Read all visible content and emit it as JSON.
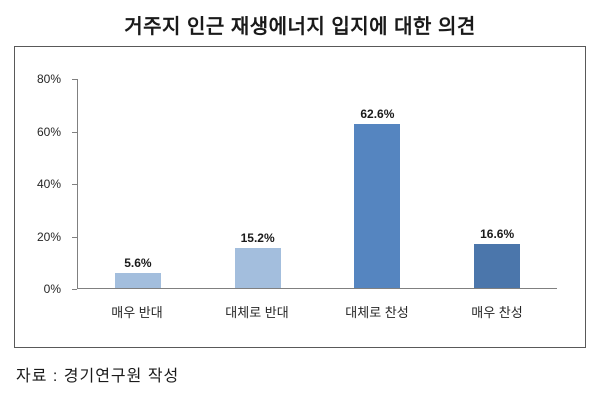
{
  "chart_data": {
    "type": "bar",
    "title": "거주지 인근 재생에너지 입지에 대한 의견",
    "categories": [
      "매우 반대",
      "대체로 반대",
      "대체로 찬성",
      "매우 찬성"
    ],
    "values": [
      5.6,
      15.2,
      62.6,
      16.6
    ],
    "data_labels": [
      "5.6%",
      "15.2%",
      "62.6%",
      "16.6%"
    ],
    "bar_colors": [
      "#a3bedd",
      "#a3bedd",
      "#5585c0",
      "#4b76ab"
    ],
    "ylabel": "",
    "xlabel": "",
    "ylim": [
      0,
      80
    ],
    "yticks": [
      0,
      20,
      40,
      60,
      80
    ],
    "ytick_labels": [
      "0%",
      "20%",
      "40%",
      "60%",
      "80%"
    ],
    "grid": false,
    "legend": "none"
  },
  "source": "자료 : 경기연구원 작성",
  "colors": {
    "frame_border": "#595959",
    "axis": "#808080",
    "text": "#1a1a1a"
  }
}
